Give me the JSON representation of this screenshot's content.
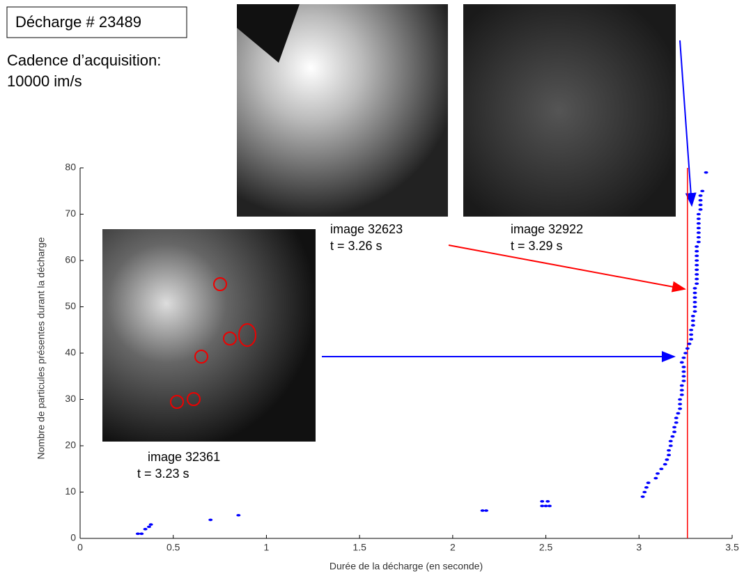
{
  "header": {
    "discharge": "Décharge # 23489",
    "rate_label": "Cadence d’acquisition:",
    "rate_value": "10000 im/s"
  },
  "chart_data": {
    "type": "scatter",
    "x_label": "Durée de la décharge (en seconde)",
    "y_label": "Nombre de particules présentes durant la décharge",
    "xlim": [
      0,
      3.5
    ],
    "ylim": [
      0,
      80
    ],
    "xticks": [
      0,
      0.5,
      1,
      1.5,
      2,
      2.5,
      3,
      3.5
    ],
    "yticks": [
      0,
      10,
      20,
      30,
      40,
      50,
      60,
      70,
      80
    ],
    "color": "#0000ff",
    "x": [
      0.31,
      0.33,
      0.35,
      0.37,
      0.38,
      0.7,
      0.85,
      2.16,
      2.18,
      2.48,
      2.5,
      2.52,
      2.48,
      2.51,
      3.02,
      3.03,
      3.04,
      3.05,
      3.09,
      3.1,
      3.12,
      3.14,
      3.15,
      3.16,
      3.16,
      3.17,
      3.17,
      3.18,
      3.19,
      3.19,
      3.2,
      3.2,
      3.21,
      3.22,
      3.22,
      3.22,
      3.23,
      3.23,
      3.23,
      3.24,
      3.24,
      3.24,
      3.24,
      3.23,
      3.24,
      3.25,
      3.26,
      3.27,
      3.28,
      3.28,
      3.28,
      3.29,
      3.29,
      3.29,
      3.3,
      3.3,
      3.3,
      3.3,
      3.3,
      3.3,
      3.31,
      3.31,
      3.31,
      3.31,
      3.31,
      3.31,
      3.31,
      3.31,
      3.31,
      3.32,
      3.32,
      3.32,
      3.32,
      3.32,
      3.32,
      3.32,
      3.33,
      3.33,
      3.33,
      3.33,
      3.34,
      3.36
    ],
    "y": [
      1,
      1,
      2,
      2.5,
      3,
      4,
      5,
      6,
      6,
      7,
      7,
      7,
      8,
      8,
      9,
      10,
      11,
      12,
      13,
      14,
      15,
      16,
      17,
      18,
      19,
      20,
      21,
      22,
      23,
      24,
      25,
      26,
      27,
      28,
      29,
      30,
      31,
      32,
      33,
      34,
      35,
      36,
      37,
      38,
      39,
      40,
      41,
      42,
      43,
      44,
      45,
      46,
      47,
      48,
      49,
      50,
      51,
      52,
      53,
      54,
      55,
      56,
      57,
      58,
      59,
      60,
      61,
      62,
      63,
      64,
      65,
      66,
      67,
      68,
      69,
      70,
      71,
      72,
      73,
      74,
      75,
      79
    ],
    "vline": {
      "x": 3.26,
      "color": "#ff0000"
    },
    "annotations": [
      {
        "image": "image 32623",
        "time": "t = 3.26 s"
      },
      {
        "image": "image 32922",
        "time": "t = 3.29 s"
      },
      {
        "image": "image 32361",
        "time": "t = 3.23 s"
      }
    ]
  }
}
